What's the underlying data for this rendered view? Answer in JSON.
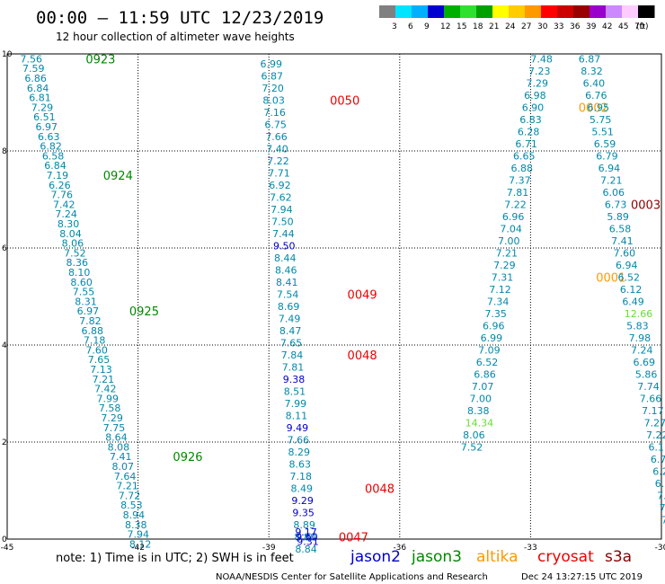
{
  "title": "00:00 – 11:59 UTC 12/23/2019",
  "subtitle": "12 hour collection of altimeter wave heights",
  "note": "note: 1) Time is in UTC; 2) SWH is in feet",
  "credit": "NOAA/NESDIS Center for Satellite Applications and Research",
  "generated": "Dec 24 13:27:15 UTC 2019",
  "colorbar": {
    "unit": "(ft)",
    "ticks": [
      "3",
      "6",
      "9",
      "12",
      "15",
      "18",
      "21",
      "24",
      "27",
      "30",
      "33",
      "36",
      "39",
      "42",
      "45",
      "70"
    ],
    "colors": [
      "#808080",
      "#00e5ff",
      "#00b0ff",
      "#0000d0",
      "#00b000",
      "#30e030",
      "#00a000",
      "#ffff00",
      "#ffcc00",
      "#ff9900",
      "#ff0000",
      "#cc0000",
      "#990000",
      "#9900cc",
      "#cc88ff",
      "#ffccff",
      "#000000"
    ]
  },
  "legend": [
    {
      "name": "jason2",
      "color": "#0000cc"
    },
    {
      "name": "jason3",
      "color": "#008800"
    },
    {
      "name": "altika",
      "color": "#ff9900"
    },
    {
      "name": "cryosat",
      "color": "#ee0000"
    },
    {
      "name": "s3a",
      "color": "#880000"
    }
  ],
  "chart_data": {
    "type": "scatter",
    "xlim": [
      -45,
      -30
    ],
    "ylim": [
      0,
      10
    ],
    "x_ticks": [
      "-45",
      "-42",
      "-39",
      "-36",
      "-33",
      "-30"
    ],
    "y_ticks": [
      "0",
      "2",
      "4",
      "6",
      "8",
      "10"
    ],
    "grid": true,
    "series": [
      {
        "name": "jason3",
        "color": "#0088aa",
        "label_color": "#008800",
        "points": [
          {
            "x": -44.7,
            "y": 9.9,
            "v": "7.56"
          },
          {
            "x": -44.65,
            "y": 9.7,
            "v": "7.59"
          },
          {
            "x": -44.6,
            "y": 9.5,
            "v": "6.86"
          },
          {
            "x": -44.55,
            "y": 9.3,
            "v": "6.84"
          },
          {
            "x": -44.5,
            "y": 9.1,
            "v": "6.81"
          },
          {
            "x": -44.45,
            "y": 8.9,
            "v": "7.29"
          },
          {
            "x": -44.4,
            "y": 8.7,
            "v": "6.51"
          },
          {
            "x": -44.35,
            "y": 8.5,
            "v": "6.97"
          },
          {
            "x": -44.3,
            "y": 8.3,
            "v": "6.63"
          },
          {
            "x": -44.25,
            "y": 8.1,
            "v": "6.82"
          },
          {
            "x": -44.2,
            "y": 7.9,
            "v": "6.58"
          },
          {
            "x": -44.15,
            "y": 7.7,
            "v": "6.84"
          },
          {
            "x": -44.1,
            "y": 7.5,
            "v": "7.19"
          },
          {
            "x": -44.05,
            "y": 7.3,
            "v": "6.26"
          },
          {
            "x": -44.0,
            "y": 7.1,
            "v": "7.76"
          },
          {
            "x": -43.95,
            "y": 6.9,
            "v": "7.42"
          },
          {
            "x": -43.9,
            "y": 6.7,
            "v": "7.24"
          },
          {
            "x": -43.85,
            "y": 6.5,
            "v": "8.30"
          },
          {
            "x": -43.8,
            "y": 6.3,
            "v": "8.04"
          },
          {
            "x": -43.75,
            "y": 6.1,
            "v": "8.06"
          },
          {
            "x": -43.7,
            "y": 5.9,
            "v": "7.52"
          },
          {
            "x": -43.65,
            "y": 5.7,
            "v": "8.36"
          },
          {
            "x": -43.6,
            "y": 5.5,
            "v": "8.10"
          },
          {
            "x": -43.55,
            "y": 5.3,
            "v": "8.60"
          },
          {
            "x": -43.5,
            "y": 5.1,
            "v": "7.55"
          },
          {
            "x": -43.45,
            "y": 4.9,
            "v": "8.31"
          },
          {
            "x": -43.4,
            "y": 4.7,
            "v": "6.97"
          },
          {
            "x": -43.35,
            "y": 4.5,
            "v": "7.82"
          },
          {
            "x": -43.3,
            "y": 4.3,
            "v": "6.88"
          },
          {
            "x": -43.25,
            "y": 4.1,
            "v": "7.18"
          },
          {
            "x": -43.2,
            "y": 3.9,
            "v": "7.60"
          },
          {
            "x": -43.15,
            "y": 3.7,
            "v": "7.65"
          },
          {
            "x": -43.1,
            "y": 3.5,
            "v": "7.13"
          },
          {
            "x": -43.05,
            "y": 3.3,
            "v": "7.21"
          },
          {
            "x": -43.0,
            "y": 3.1,
            "v": "7.42"
          },
          {
            "x": -42.95,
            "y": 2.9,
            "v": "7.99"
          },
          {
            "x": -42.9,
            "y": 2.7,
            "v": "7.58"
          },
          {
            "x": -42.85,
            "y": 2.5,
            "v": "7.29"
          },
          {
            "x": -42.8,
            "y": 2.3,
            "v": "7.75"
          },
          {
            "x": -42.75,
            "y": 2.1,
            "v": "8.64"
          },
          {
            "x": -42.7,
            "y": 1.9,
            "v": "8.08"
          },
          {
            "x": -42.65,
            "y": 1.7,
            "v": "7.41"
          },
          {
            "x": -42.6,
            "y": 1.5,
            "v": "8.07"
          },
          {
            "x": -42.55,
            "y": 1.3,
            "v": "7.64"
          },
          {
            "x": -42.5,
            "y": 1.1,
            "v": "7.21"
          },
          {
            "x": -42.45,
            "y": 0.9,
            "v": "7.72"
          },
          {
            "x": -42.4,
            "y": 0.7,
            "v": "8.53"
          },
          {
            "x": -42.35,
            "y": 0.5,
            "v": "8.94"
          },
          {
            "x": -42.3,
            "y": 0.3,
            "v": "8.38"
          },
          {
            "x": -42.25,
            "y": 0.1,
            "v": "7.94"
          },
          {
            "x": -42.2,
            "y": -0.1,
            "v": "8.12"
          }
        ],
        "time_labels": [
          {
            "x": -43.2,
            "y": 9.9,
            "v": "0923"
          },
          {
            "x": -42.8,
            "y": 7.5,
            "v": "0924"
          },
          {
            "x": -42.2,
            "y": 4.7,
            "v": "0925"
          },
          {
            "x": -41.2,
            "y": 1.7,
            "v": "0926"
          }
        ]
      },
      {
        "name": "cryosat",
        "color": "#0088aa",
        "label_color": "#ee0000",
        "points": [
          {
            "x": -39.2,
            "y": 9.8,
            "v": "6.99"
          },
          {
            "x": -39.18,
            "y": 9.55,
            "v": "6.87"
          },
          {
            "x": -39.16,
            "y": 9.3,
            "v": "7.20"
          },
          {
            "x": -39.14,
            "y": 9.05,
            "v": "8.03"
          },
          {
            "x": -39.12,
            "y": 8.8,
            "v": "7.16"
          },
          {
            "x": -39.1,
            "y": 8.55,
            "v": "6.75"
          },
          {
            "x": -39.08,
            "y": 8.3,
            "v": "7.66"
          },
          {
            "x": -39.06,
            "y": 8.05,
            "v": "7.40"
          },
          {
            "x": -39.04,
            "y": 7.8,
            "v": "7.22"
          },
          {
            "x": -39.02,
            "y": 7.55,
            "v": "7.71"
          },
          {
            "x": -39.0,
            "y": 7.3,
            "v": "6.92"
          },
          {
            "x": -38.98,
            "y": 7.05,
            "v": "7.62"
          },
          {
            "x": -38.96,
            "y": 6.8,
            "v": "7.94"
          },
          {
            "x": -38.94,
            "y": 6.55,
            "v": "7.50"
          },
          {
            "x": -38.92,
            "y": 6.3,
            "v": "7.44"
          },
          {
            "x": -38.9,
            "y": 6.05,
            "v": "9.50",
            "c": "#0000cc"
          },
          {
            "x": -38.88,
            "y": 5.8,
            "v": "8.44"
          },
          {
            "x": -38.86,
            "y": 5.55,
            "v": "8.46"
          },
          {
            "x": -38.84,
            "y": 5.3,
            "v": "8.41"
          },
          {
            "x": -38.82,
            "y": 5.05,
            "v": "7.54"
          },
          {
            "x": -38.8,
            "y": 4.8,
            "v": "8.69"
          },
          {
            "x": -38.78,
            "y": 4.55,
            "v": "7.49"
          },
          {
            "x": -38.76,
            "y": 4.3,
            "v": "8.47"
          },
          {
            "x": -38.74,
            "y": 4.05,
            "v": "7.65"
          },
          {
            "x": -38.72,
            "y": 3.8,
            "v": "7.84"
          },
          {
            "x": -38.7,
            "y": 3.55,
            "v": "7.81"
          },
          {
            "x": -38.68,
            "y": 3.3,
            "v": "9.38",
            "c": "#0000cc"
          },
          {
            "x": -38.66,
            "y": 3.05,
            "v": "8.51"
          },
          {
            "x": -38.64,
            "y": 2.8,
            "v": "7.99"
          },
          {
            "x": -38.62,
            "y": 2.55,
            "v": "8.11"
          },
          {
            "x": -38.6,
            "y": 2.3,
            "v": "9.49",
            "c": "#0000cc"
          },
          {
            "x": -38.58,
            "y": 2.05,
            "v": "7.66"
          },
          {
            "x": -38.56,
            "y": 1.8,
            "v": "8.29"
          },
          {
            "x": -38.54,
            "y": 1.55,
            "v": "8.63"
          },
          {
            "x": -38.52,
            "y": 1.3,
            "v": "7.18"
          },
          {
            "x": -38.5,
            "y": 1.05,
            "v": "8.49"
          },
          {
            "x": -38.48,
            "y": 0.8,
            "v": "9.29",
            "c": "#0000cc"
          },
          {
            "x": -38.46,
            "y": 0.55,
            "v": "9.35",
            "c": "#0000cc"
          },
          {
            "x": -38.44,
            "y": 0.3,
            "v": "8.89"
          },
          {
            "x": -38.42,
            "y": 0.05,
            "v": "8.80"
          },
          {
            "x": -38.4,
            "y": -0.2,
            "v": "8.84"
          }
        ],
        "time_labels": [
          {
            "x": -37.6,
            "y": 9.05,
            "v": "0050"
          },
          {
            "x": -37.2,
            "y": 5.05,
            "v": "0049"
          },
          {
            "x": -37.2,
            "y": 3.8,
            "v": "0048"
          },
          {
            "x": -36.8,
            "y": 1.05,
            "v": "0048"
          }
        ]
      },
      {
        "name": "altika",
        "color": "#0088aa",
        "label_color": "#ff9900",
        "points": [
          {
            "x": -33.0,
            "y": 9.9,
            "v": "7.48"
          },
          {
            "x": -33.05,
            "y": 9.65,
            "v": "7.23"
          },
          {
            "x": -33.1,
            "y": 9.4,
            "v": "7.29"
          },
          {
            "x": -33.15,
            "y": 9.15,
            "v": "6.98"
          },
          {
            "x": -33.2,
            "y": 8.9,
            "v": "6.90"
          },
          {
            "x": -33.25,
            "y": 8.65,
            "v": "6.83"
          },
          {
            "x": -33.3,
            "y": 8.4,
            "v": "6.28"
          },
          {
            "x": -33.35,
            "y": 8.15,
            "v": "6.71"
          },
          {
            "x": -33.4,
            "y": 7.9,
            "v": "6.65"
          },
          {
            "x": -33.45,
            "y": 7.65,
            "v": "6.88"
          },
          {
            "x": -33.5,
            "y": 7.4,
            "v": "7.37"
          },
          {
            "x": -33.55,
            "y": 7.15,
            "v": "7.81"
          },
          {
            "x": -33.6,
            "y": 6.9,
            "v": "7.22"
          },
          {
            "x": -33.65,
            "y": 6.65,
            "v": "6.96"
          },
          {
            "x": -33.7,
            "y": 6.4,
            "v": "7.04"
          },
          {
            "x": -33.75,
            "y": 6.15,
            "v": "7.00"
          },
          {
            "x": -33.8,
            "y": 5.9,
            "v": "7.21"
          },
          {
            "x": -33.85,
            "y": 5.65,
            "v": "7.29"
          },
          {
            "x": -33.9,
            "y": 5.4,
            "v": "7.31"
          },
          {
            "x": -33.95,
            "y": 5.15,
            "v": "7.12"
          },
          {
            "x": -34.0,
            "y": 4.9,
            "v": "7.34"
          },
          {
            "x": -34.05,
            "y": 4.65,
            "v": "7.35"
          },
          {
            "x": -34.1,
            "y": 4.4,
            "v": "6.96"
          },
          {
            "x": -34.15,
            "y": 4.15,
            "v": "6.99"
          },
          {
            "x": -34.2,
            "y": 3.9,
            "v": "7.09"
          },
          {
            "x": -34.25,
            "y": 3.65,
            "v": "6.52"
          },
          {
            "x": -34.3,
            "y": 3.4,
            "v": "6.86"
          },
          {
            "x": -34.35,
            "y": 3.15,
            "v": "7.07"
          },
          {
            "x": -34.4,
            "y": 2.9,
            "v": "7.00"
          },
          {
            "x": -34.45,
            "y": 2.65,
            "v": "8.38"
          },
          {
            "x": -34.5,
            "y": 2.4,
            "v": "14.34",
            "c": "#66dd33"
          },
          {
            "x": -34.55,
            "y": 2.15,
            "v": "8.06"
          },
          {
            "x": -34.6,
            "y": 1.9,
            "v": "7.52"
          }
        ],
        "time_labels": [
          {
            "x": -31.9,
            "y": 8.9,
            "v": "0002"
          },
          {
            "x": -31.5,
            "y": 5.4,
            "v": "0001"
          }
        ]
      },
      {
        "name": "s3a",
        "color": "#0088aa",
        "label_color": "#880000",
        "points": [
          {
            "x": -31.9,
            "y": 9.9,
            "v": "6.87"
          },
          {
            "x": -31.85,
            "y": 9.65,
            "v": "8.32"
          },
          {
            "x": -31.8,
            "y": 9.4,
            "v": "6.40"
          },
          {
            "x": -31.75,
            "y": 9.15,
            "v": "6.76"
          },
          {
            "x": -31.7,
            "y": 8.9,
            "v": "6.95"
          },
          {
            "x": -31.65,
            "y": 8.65,
            "v": "5.75"
          },
          {
            "x": -31.6,
            "y": 8.4,
            "v": "5.51"
          },
          {
            "x": -31.55,
            "y": 8.15,
            "v": "6.59"
          },
          {
            "x": -31.5,
            "y": 7.9,
            "v": "6.79"
          },
          {
            "x": -31.45,
            "y": 7.65,
            "v": "6.94"
          },
          {
            "x": -31.4,
            "y": 7.4,
            "v": "7.21"
          },
          {
            "x": -31.35,
            "y": 7.15,
            "v": "6.06"
          },
          {
            "x": -31.3,
            "y": 6.9,
            "v": "6.73"
          },
          {
            "x": -31.25,
            "y": 6.65,
            "v": "5.89"
          },
          {
            "x": -31.2,
            "y": 6.4,
            "v": "6.58"
          },
          {
            "x": -31.15,
            "y": 6.15,
            "v": "7.41"
          },
          {
            "x": -31.1,
            "y": 5.9,
            "v": "7.60"
          },
          {
            "x": -31.05,
            "y": 5.65,
            "v": "6.94"
          },
          {
            "x": -31.0,
            "y": 5.4,
            "v": "6.52"
          },
          {
            "x": -30.95,
            "y": 5.15,
            "v": "6.12"
          },
          {
            "x": -30.9,
            "y": 4.9,
            "v": "6.49"
          },
          {
            "x": -30.85,
            "y": 4.65,
            "v": "12.66",
            "c": "#66dd33"
          },
          {
            "x": -30.8,
            "y": 4.4,
            "v": "5.83"
          },
          {
            "x": -30.75,
            "y": 4.15,
            "v": "7.98"
          },
          {
            "x": -30.7,
            "y": 3.9,
            "v": "7.24"
          },
          {
            "x": -30.65,
            "y": 3.65,
            "v": "6.69"
          },
          {
            "x": -30.6,
            "y": 3.4,
            "v": "5.86"
          },
          {
            "x": -30.55,
            "y": 3.15,
            "v": "7.74"
          },
          {
            "x": -30.5,
            "y": 2.9,
            "v": "7.66"
          },
          {
            "x": -30.45,
            "y": 2.65,
            "v": "7.17"
          },
          {
            "x": -30.4,
            "y": 2.4,
            "v": "7.27"
          },
          {
            "x": -30.35,
            "y": 2.15,
            "v": "7.22"
          },
          {
            "x": -30.3,
            "y": 1.9,
            "v": "6.11"
          },
          {
            "x": -30.25,
            "y": 1.65,
            "v": "6.78"
          },
          {
            "x": -30.2,
            "y": 1.4,
            "v": "6.27"
          },
          {
            "x": -30.15,
            "y": 1.15,
            "v": "6.94"
          },
          {
            "x": -30.1,
            "y": 0.9,
            "v": "7.10"
          },
          {
            "x": -30.05,
            "y": 0.65,
            "v": "7.52"
          },
          {
            "x": -30.0,
            "y": 0.4,
            "v": "7.23"
          }
        ],
        "time_labels": [
          {
            "x": -30.7,
            "y": 6.9,
            "v": "0003"
          },
          {
            "x": -29.9,
            "y": 3.4,
            "v": "00"
          }
        ]
      }
    ],
    "jason2_points": [
      {
        "x": -38.4,
        "y": 0.15,
        "v": "9.17"
      },
      {
        "x": -38.38,
        "y": 0.05,
        "v": "9.60"
      },
      {
        "x": -38.36,
        "y": -0.05,
        "v": "9.31"
      }
    ],
    "jason2_label": {
      "x": -37.4,
      "y": 0.05,
      "v": "0047"
    }
  }
}
